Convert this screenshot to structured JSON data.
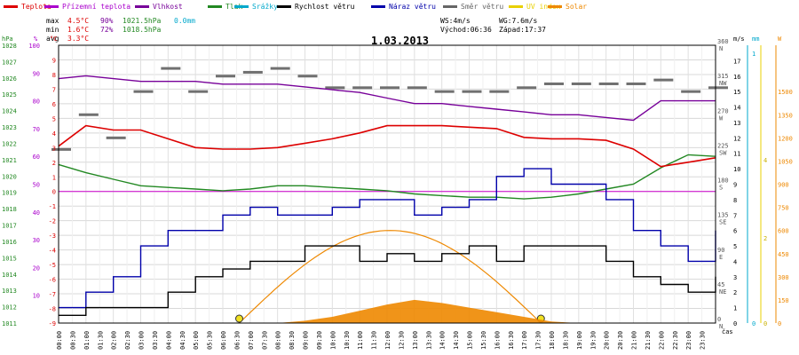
{
  "chart_data": {
    "type": "line",
    "title": "1.03.2013",
    "xlabel": "čas",
    "legend": [
      {
        "label": "Teplota",
        "color": "#dd0000"
      },
      {
        "label": "Přízemní teplota",
        "color": "#aa00cc"
      },
      {
        "label": "Vlhkost",
        "color": "#770099"
      },
      {
        "label": "Tlak",
        "color": "#228822"
      },
      {
        "label": "Srážky",
        "color": "#00a8cc"
      },
      {
        "label": "Rychlost větru",
        "color": "#000000"
      },
      {
        "label": "Náraz větru",
        "color": "#0000aa"
      },
      {
        "label": "Směr větru",
        "color": "#666666"
      },
      {
        "label": "UV index",
        "color": "#e8d000"
      },
      {
        "label": "Solar",
        "color": "#ee8800"
      }
    ],
    "stats": {
      "max": {
        "label": "max",
        "temp": "4.5°C",
        "hum": "90%",
        "press": "1021.5hPa",
        "rain": "0.0mm"
      },
      "min": {
        "label": "min",
        "temp": "1.6°C",
        "hum": "72%",
        "press": "1018.5hPa"
      },
      "avg": {
        "label": "avg",
        "temp": "3.3°C"
      }
    },
    "info": {
      "ws": "WS:4m/s",
      "wg": "WG:7.6m/s",
      "sunrise": "Východ:06:36",
      "sunset": "Západ:17:37"
    },
    "axes": {
      "press": {
        "unit": "hPa",
        "ticks": [
          "1011",
          "1012",
          "1013",
          "1014",
          "1015",
          "1016",
          "1017",
          "1018",
          "1019",
          "1020",
          "1021",
          "1022",
          "1023",
          "1024",
          "1025",
          "1026",
          "1027",
          "1028"
        ],
        "range": [
          1011,
          1028
        ]
      },
      "hum": {
        "unit": "%",
        "ticks": [
          "10",
          "20",
          "30",
          "40",
          "50",
          "60",
          "70",
          "80",
          "90",
          "100"
        ],
        "range": [
          0,
          100
        ]
      },
      "temp": {
        "unit": "°C",
        "ticks": [
          "-9",
          "-8",
          "-7",
          "-6",
          "-5",
          "-4",
          "-3",
          "-2",
          "-1",
          "0",
          "1",
          "2",
          "3",
          "4",
          "5",
          "6",
          "7",
          "8",
          "9"
        ],
        "range": [
          -9,
          10
        ]
      },
      "wind": {
        "unit": "m/s",
        "ticks": [
          "0",
          "1",
          "2",
          "3",
          "4",
          "5",
          "6",
          "7",
          "8",
          "9",
          "10",
          "11",
          "12",
          "13",
          "14",
          "15",
          "16",
          "17"
        ],
        "range": [
          0,
          18
        ]
      },
      "dir": {
        "ticks": [
          {
            "deg": "0",
            "lbl": "N"
          },
          {
            "deg": "45",
            "lbl": "NE"
          },
          {
            "deg": "90",
            "lbl": "E"
          },
          {
            "deg": "135",
            "lbl": "SE"
          },
          {
            "deg": "180",
            "lbl": "S"
          },
          {
            "deg": "225",
            "lbl": "SW"
          },
          {
            "deg": "270",
            "lbl": "W"
          },
          {
            "deg": "315",
            "lbl": "NW"
          },
          {
            "deg": "360",
            "lbl": "N"
          }
        ]
      },
      "rain": {
        "unit": "mm",
        "ticks": [
          "0",
          "1"
        ]
      },
      "uv": {
        "ticks": [
          "0",
          "2",
          "4"
        ]
      },
      "solar": {
        "unit": "W",
        "ticks": [
          "0",
          "150",
          "300",
          "450",
          "600",
          "750",
          "900",
          "1050",
          "1200",
          "1350",
          "1500"
        ],
        "range": [
          0,
          1800
        ]
      }
    },
    "x_ticks": [
      "00:00",
      "00:30",
      "01:00",
      "01:30",
      "02:00",
      "02:30",
      "03:00",
      "03:30",
      "04:00",
      "04:30",
      "05:00",
      "05:30",
      "06:00",
      "06:30",
      "07:00",
      "07:30",
      "08:00",
      "08:30",
      "09:00",
      "09:30",
      "10:00",
      "10:30",
      "11:00",
      "11:30",
      "12:00",
      "12:30",
      "13:00",
      "13:30",
      "14:00",
      "14:30",
      "15:00",
      "15:30",
      "16:00",
      "16:30",
      "17:00",
      "17:30",
      "18:00",
      "18:30",
      "19:00",
      "19:30",
      "20:00",
      "20:30",
      "21:00",
      "21:30",
      "22:00",
      "22:30",
      "23:00",
      "23:30"
    ],
    "x": [
      0,
      1,
      2,
      3,
      4,
      5,
      6,
      7,
      8,
      9,
      10,
      11,
      12,
      13,
      14,
      15,
      16,
      17,
      18,
      19,
      20,
      21,
      22,
      23,
      24
    ],
    "series": [
      {
        "name": "Teplota",
        "unit": "°C",
        "values": [
          3.1,
          4.5,
          4.2,
          4.2,
          3.6,
          3.0,
          2.9,
          2.9,
          3.0,
          3.3,
          3.6,
          4.0,
          4.5,
          4.5,
          4.5,
          4.4,
          4.3,
          3.7,
          3.6,
          3.6,
          3.5,
          2.9,
          1.7,
          2.0,
          2.3
        ]
      },
      {
        "name": "Vlhkost",
        "unit": "%",
        "values": [
          88,
          89,
          88,
          87,
          87,
          87,
          86,
          86,
          86,
          85,
          84,
          83,
          81,
          79,
          79,
          78,
          77,
          76,
          75,
          75,
          74,
          73,
          80,
          80,
          80
        ]
      },
      {
        "name": "Tlak",
        "unit": "hPa",
        "values": [
          1020.7,
          1020.2,
          1019.8,
          1019.4,
          1019.3,
          1019.2,
          1019.1,
          1019.2,
          1019.4,
          1019.4,
          1019.3,
          1019.2,
          1019.1,
          1018.9,
          1018.8,
          1018.7,
          1018.7,
          1018.6,
          1018.7,
          1018.9,
          1019.2,
          1019.5,
          1020.5,
          1021.3,
          1021.2
        ]
      },
      {
        "name": "Rychlost větru",
        "unit": "m/s",
        "values": [
          0.5,
          1,
          1,
          1,
          2,
          3,
          3.5,
          4,
          4,
          5,
          5,
          4,
          4.5,
          4,
          4.5,
          5,
          4,
          5,
          5,
          5,
          4,
          3,
          2.5,
          2,
          3
        ]
      },
      {
        "name": "Náraz větru",
        "unit": "m/s",
        "values": [
          1,
          2,
          3,
          5,
          6,
          6,
          7,
          7.5,
          7,
          7,
          7.5,
          8,
          8,
          7,
          7.5,
          8,
          9.5,
          10,
          9,
          9,
          8,
          6,
          5,
          4,
          6
        ]
      },
      {
        "name": "Směr větru",
        "unit": "°",
        "values": [
          225,
          270,
          240,
          300,
          330,
          300,
          320,
          325,
          330,
          320,
          305,
          305,
          305,
          305,
          300,
          300,
          300,
          305,
          310,
          310,
          310,
          310,
          315,
          300,
          305
        ]
      },
      {
        "name": "Solar",
        "unit": "W/m2",
        "values": [
          0,
          0,
          0,
          0,
          0,
          0,
          0,
          0,
          0,
          15,
          40,
          80,
          120,
          150,
          130,
          100,
          70,
          40,
          10,
          0,
          0,
          0,
          0,
          0,
          0
        ]
      }
    ],
    "solar_theoretical": {
      "peak": 600,
      "sunrise_h": 6.6,
      "sunset_h": 17.62
    },
    "reference_line": {
      "name": "0°C",
      "value": 0
    }
  }
}
